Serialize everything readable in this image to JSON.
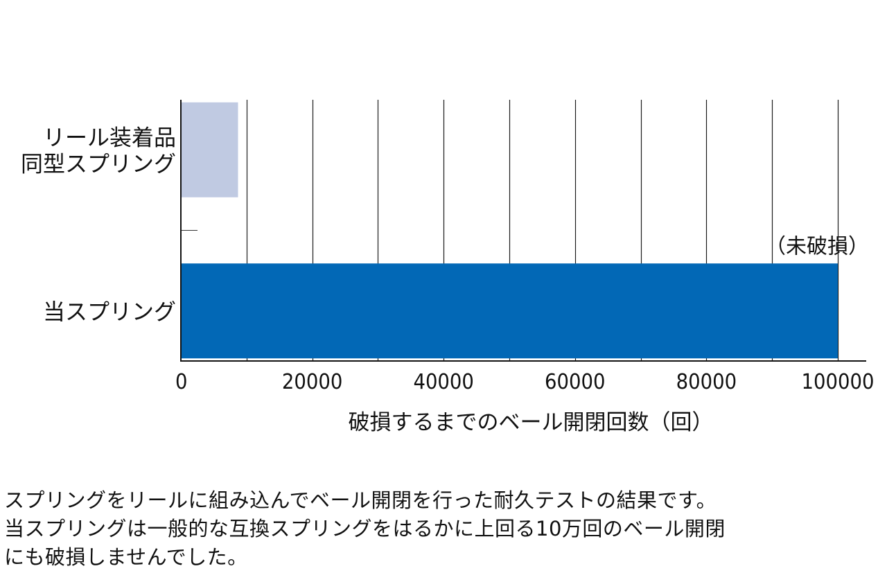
{
  "chart_data": {
    "type": "bar",
    "orientation": "horizontal",
    "categories": [
      [
        "リール装着品",
        "同型スプリング"
      ],
      [
        "当スプリング"
      ]
    ],
    "values": [
      8700,
      100000
    ],
    "colors": [
      "#c0cae2",
      "#0268b6"
    ],
    "annotations": [
      null,
      "（未破損）"
    ],
    "xlabel": "破損するまでのベール開閉回数（回）",
    "xlim": [
      0,
      100000
    ],
    "x_ticks": [
      0,
      20000,
      40000,
      60000,
      80000,
      100000
    ],
    "x_gridlines": [
      10000,
      20000,
      30000,
      40000,
      50000,
      60000,
      70000,
      80000,
      90000,
      100000
    ],
    "grid": true
  },
  "caption": {
    "lines": [
      "スプリングをリールに組み込んでベール開閉を行った耐久テストの結果です。",
      "当スプリングは一般的な互換スプリングをはるかに上回る10万回のベール開閉",
      "にも破損しませんでした。"
    ]
  }
}
